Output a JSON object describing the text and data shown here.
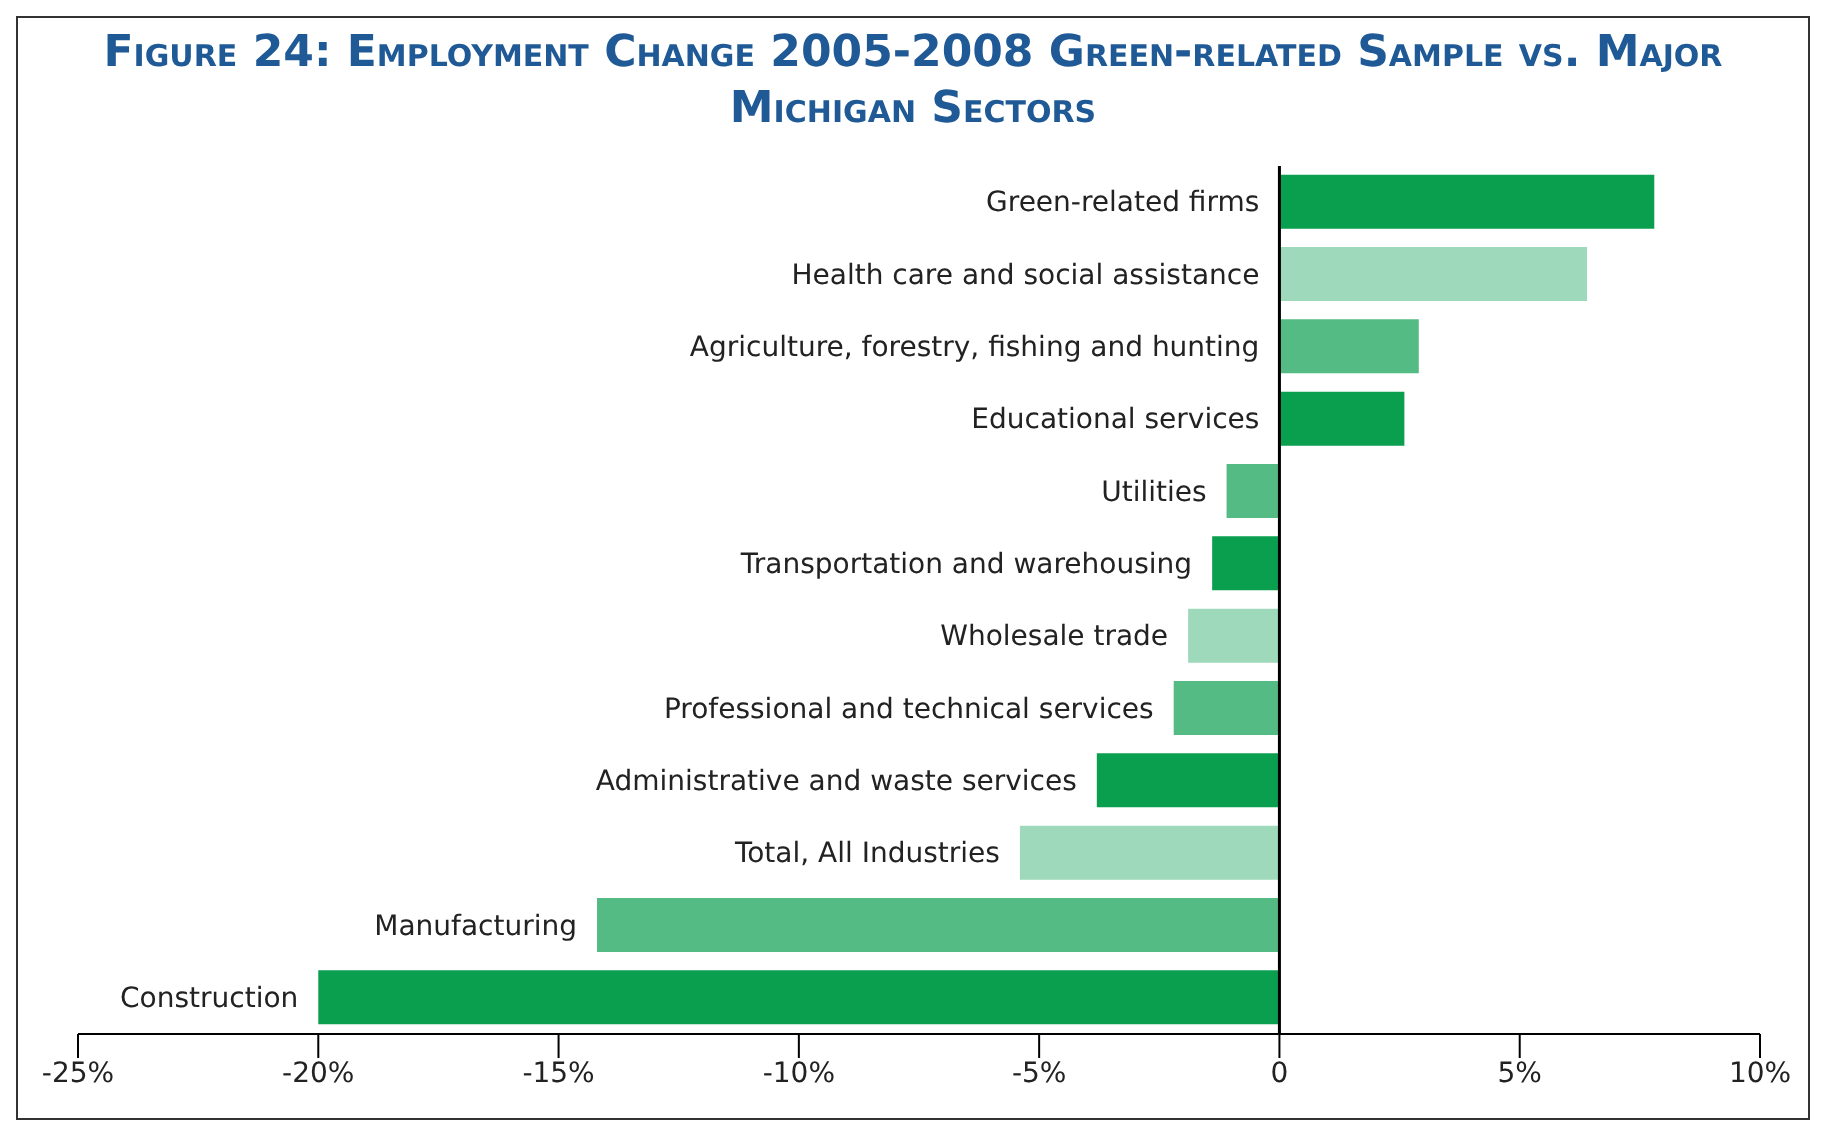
{
  "chart_data": {
    "type": "bar",
    "orientation": "horizontal",
    "title": "Figure 24: Employment Change 2005-2008 Green-related Sample vs. Major Michigan Sectors",
    "categories": [
      "Green-related firms",
      "Health care and social assistance",
      "Agriculture, forestry, fishing and hunting",
      "Educational services",
      "Utilities",
      "Transportation and warehousing",
      "Wholesale trade",
      "Professional and technical services",
      "Administrative and waste services",
      "Total, All Industries",
      "Manufacturing",
      "Construction"
    ],
    "values": [
      7.8,
      6.4,
      2.9,
      2.6,
      -1.1,
      -1.4,
      -1.9,
      -2.2,
      -3.8,
      -5.4,
      -14.2,
      -20.0
    ],
    "colors": [
      "#0a9e4f",
      "#9ed9bb",
      "#55bb85",
      "#0a9e4f",
      "#55bb85",
      "#0a9e4f",
      "#9ed9bb",
      "#55bb85",
      "#0a9e4f",
      "#9ed9bb",
      "#55bb85",
      "#0a9e4f"
    ],
    "xlim": [
      -25,
      10
    ],
    "xticks": [
      {
        "value": -25,
        "label": "-25%"
      },
      {
        "value": -20,
        "label": "-20%"
      },
      {
        "value": -15,
        "label": "-15%"
      },
      {
        "value": -10,
        "label": "-10%"
      },
      {
        "value": -5,
        "label": "-5%"
      },
      0,
      {
        "value": 5,
        "label": "5%"
      },
      {
        "value": 10,
        "label": "10%"
      }
    ]
  }
}
